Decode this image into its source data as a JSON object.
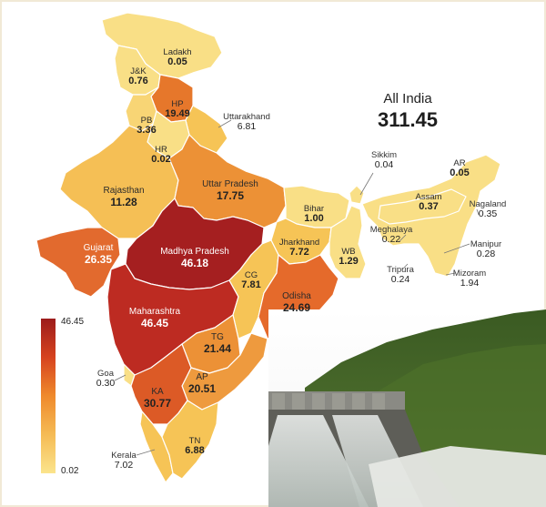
{
  "all_india": {
    "label": "All India",
    "value": "311.45"
  },
  "legend": {
    "max": "46.45",
    "min": "0.02",
    "colors": [
      "#9c1c1c",
      "#d6431f",
      "#ef8a2c",
      "#f5bb55",
      "#fbe48c"
    ]
  },
  "states": {
    "ladakh": {
      "name": "Ladakh",
      "value": "0.05"
    },
    "jk": {
      "name": "J&K",
      "value": "0.76"
    },
    "hp": {
      "name": "HP",
      "value": "19.49"
    },
    "uttarakhand": {
      "name": "Uttarakhand",
      "value": "6.81"
    },
    "pb": {
      "name": "PB",
      "value": "3.36"
    },
    "hr": {
      "name": "HR",
      "value": "0.02"
    },
    "rajasthan": {
      "name": "Rajasthan",
      "value": "11.28"
    },
    "up": {
      "name": "Uttar Pradesh",
      "value": "17.75"
    },
    "bihar": {
      "name": "Bihar",
      "value": "1.00"
    },
    "sikkim": {
      "name": "Sikkim",
      "value": "0.04"
    },
    "ar": {
      "name": "AR",
      "value": "0.05"
    },
    "assam": {
      "name": "Assam",
      "value": "0.37"
    },
    "nagaland": {
      "name": "Nagaland",
      "value": "0.35"
    },
    "meghalaya": {
      "name": "Meghalaya",
      "value": "0.22"
    },
    "manipur": {
      "name": "Manipur",
      "value": "0.28"
    },
    "tripura": {
      "name": "Tripura",
      "value": "0.24"
    },
    "mizoram": {
      "name": "Mizoram",
      "value": "1.94"
    },
    "gujarat": {
      "name": "Gujarat",
      "value": "26.35"
    },
    "mp": {
      "name": "Madhya Pradesh",
      "value": "46.18"
    },
    "jharkhand": {
      "name": "Jharkhand",
      "value": "7.72"
    },
    "wb": {
      "name": "WB",
      "value": "1.29"
    },
    "cg": {
      "name": "CG",
      "value": "7.81"
    },
    "odisha": {
      "name": "Odisha",
      "value": "24.69"
    },
    "maharashtra": {
      "name": "Maharashtra",
      "value": "46.45"
    },
    "tg": {
      "name": "TG",
      "value": "21.44"
    },
    "goa": {
      "name": "Goa",
      "value": "0.30"
    },
    "ka": {
      "name": "KA",
      "value": "30.77"
    },
    "ap": {
      "name": "AP",
      "value": "20.51"
    },
    "tn": {
      "name": "TN",
      "value": "6.88"
    },
    "kerala": {
      "name": "Kerala",
      "value": "7.02"
    }
  }
}
